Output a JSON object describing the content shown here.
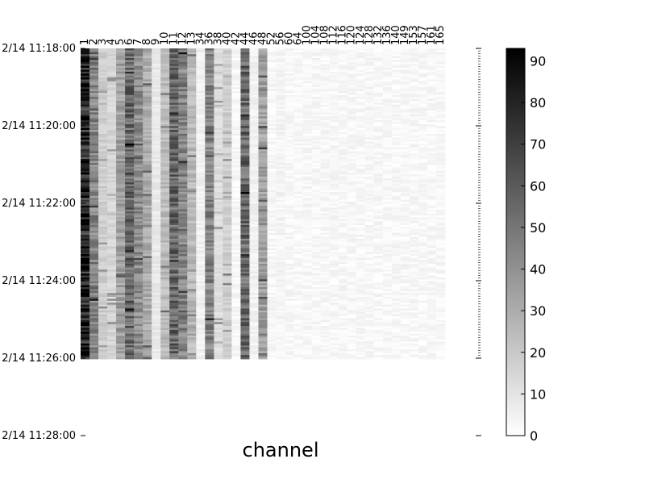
{
  "chart_data": {
    "type": "heatmap",
    "title": "",
    "xlabel": "channel",
    "ylabel": "",
    "x_categories": [
      "1",
      "2",
      "3",
      "4",
      "5",
      "6",
      "7",
      "8",
      "9",
      "10",
      "11",
      "12",
      "13",
      "34",
      "36",
      "38",
      "40",
      "42",
      "44",
      "46",
      "48",
      "52",
      "56",
      "60",
      "64",
      "100",
      "104",
      "108",
      "112",
      "116",
      "120",
      "124",
      "128",
      "132",
      "136",
      "140",
      "149",
      "153",
      "157",
      "161",
      "165"
    ],
    "y_ticks": [
      "2/14 11:18:00",
      "2/14 11:20:00",
      "2/14 11:22:00",
      "2/14 11:24:00",
      "2/14 11:26:00",
      "2/14 11:28:00"
    ],
    "time_range": [
      "2/14 11:18:00",
      "2/14 11:26:00"
    ],
    "colorbar": {
      "min": 0,
      "max": 93,
      "ticks": [
        0,
        10,
        20,
        30,
        40,
        50,
        60,
        70,
        80,
        90
      ]
    },
    "colormap": {
      "low": "#ffffff",
      "high": "#000000"
    },
    "column_mean_values": [
      80,
      45,
      18,
      15,
      35,
      55,
      42,
      30,
      8,
      25,
      55,
      45,
      25,
      5,
      45,
      12,
      18,
      3,
      55,
      5,
      35,
      3,
      4,
      3,
      3,
      3,
      3,
      3,
      3,
      3,
      3,
      3,
      3,
      3,
      3,
      3,
      3,
      3,
      3,
      3,
      3
    ]
  }
}
